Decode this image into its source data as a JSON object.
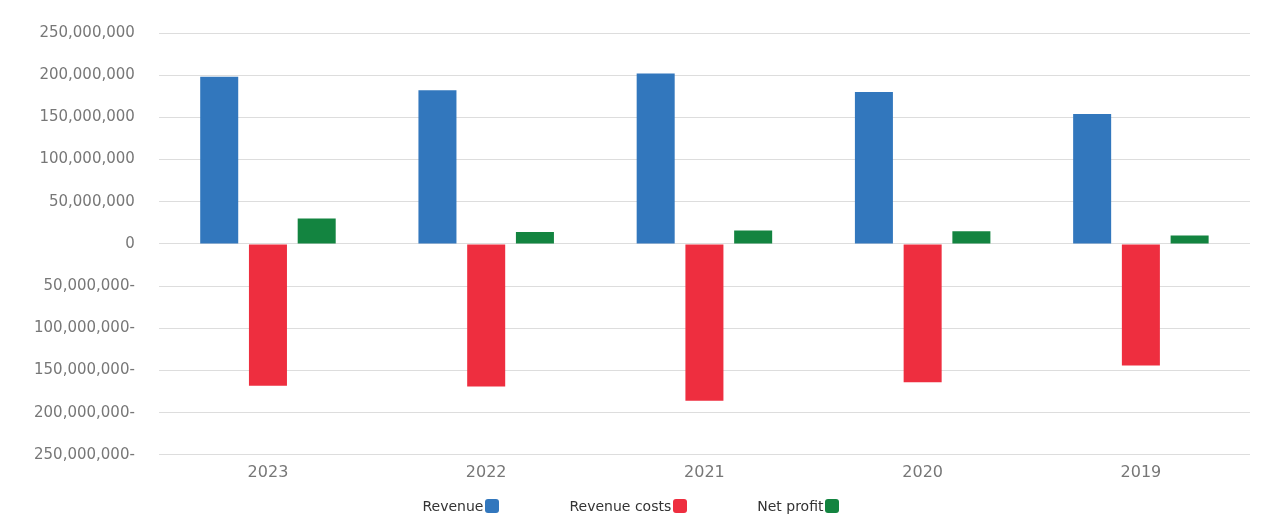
{
  "chart_data": {
    "type": "bar",
    "categories": [
      "2023",
      "2022",
      "2021",
      "2020",
      "2019"
    ],
    "series": [
      {
        "name": "Revenue",
        "color": "#3277bd",
        "values": [
          198000000,
          182000000,
          202000000,
          180000000,
          154000000
        ]
      },
      {
        "name": "Revenue costs",
        "color": "#ee2e3f",
        "values": [
          -168000000,
          -169000000,
          -186000000,
          -164000000,
          -144000000
        ]
      },
      {
        "name": "Net profit",
        "color": "#138440",
        "values": [
          30000000,
          14000000,
          16000000,
          15000000,
          10000000
        ]
      }
    ],
    "ylim": [
      -250000000,
      250000000
    ],
    "yticks": [
      {
        "value": -250000000,
        "label": "250,000,000-"
      },
      {
        "value": -200000000,
        "label": "200,000,000-"
      },
      {
        "value": -150000000,
        "label": "150,000,000-"
      },
      {
        "value": -100000000,
        "label": "100,000,000-"
      },
      {
        "value": -50000000,
        "label": "50,000,000-"
      },
      0,
      {
        "value": 50000000,
        "label": "50,000,000"
      },
      {
        "value": 100000000,
        "label": "100,000,000"
      },
      {
        "value": 150000000,
        "label": "150,000,000"
      },
      {
        "value": 200000000,
        "label": "200,000,000"
      },
      {
        "value": 250000000,
        "label": "250,000,000"
      }
    ],
    "grid": "y",
    "legend": "bottom"
  }
}
